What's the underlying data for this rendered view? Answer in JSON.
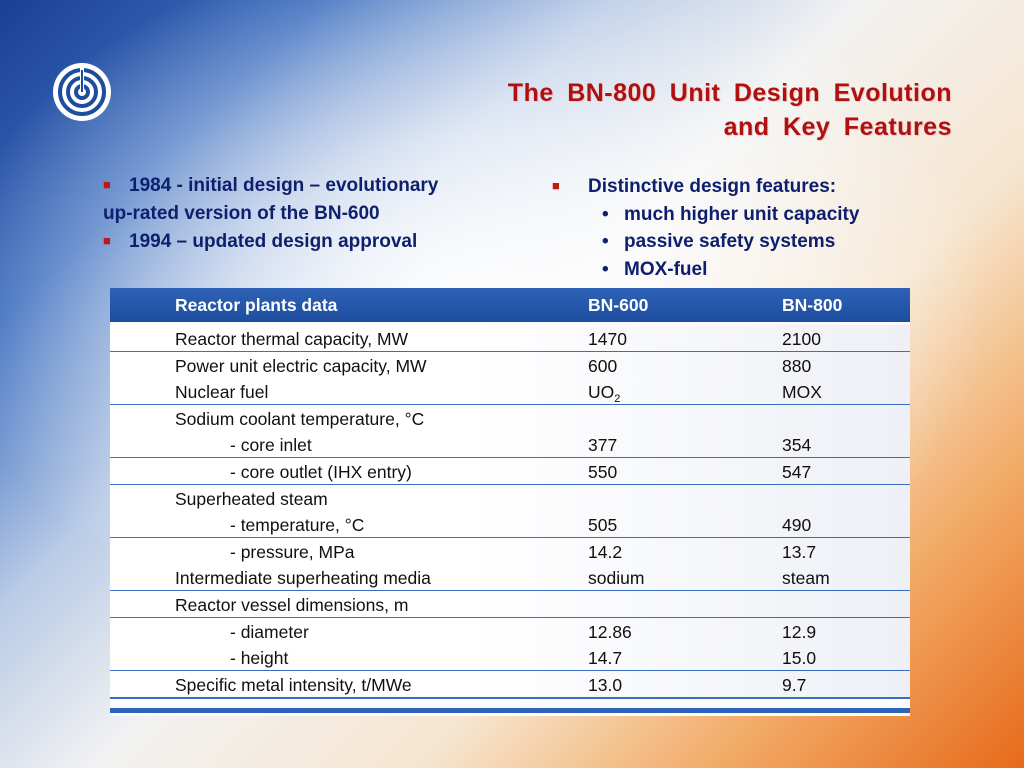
{
  "title": {
    "line1": "The  BN-800  Unit   Design  Evolution",
    "line2": "and  Key  Features"
  },
  "logo_icon": "concentric-circles-logo",
  "left_bullets": [
    {
      "text": "1984 - initial design – evolutionary",
      "continuation": "up-rated version  of the  BN-600"
    },
    {
      "text": "1994 – updated design approval"
    }
  ],
  "right_bullets": {
    "heading": "Distinctive design features:",
    "items": [
      "much higher unit capacity",
      "passive safety systems",
      "MOX-fuel"
    ]
  },
  "table": {
    "headers": [
      "Reactor plants data",
      "BN-600",
      "BN-800"
    ],
    "rows": [
      {
        "label": "Reactor thermal capacity, MW",
        "bn600": "1470",
        "bn800": "2100",
        "indent": false
      },
      {
        "label": "Power unit electric capacity, MW",
        "bn600": "600",
        "bn800": "880",
        "indent": false
      },
      {
        "label": "Nuclear fuel",
        "bn600": "UO",
        "bn600_sub": "2",
        "bn800": "MOX",
        "indent": false
      },
      {
        "label": "Sodium coolant temperature, °C",
        "bn600": "",
        "bn800": "",
        "indent": false
      },
      {
        "label": "- core inlet",
        "bn600": "377",
        "bn800": "354",
        "indent": true
      },
      {
        "label": "- core outlet (IHX entry)",
        "bn600": "550",
        "bn800": "547",
        "indent": true
      },
      {
        "label": "Superheated steam",
        "bn600": "",
        "bn800": "",
        "indent": false
      },
      {
        "label": "- temperature, °C",
        "bn600": "505",
        "bn800": "490",
        "indent": true
      },
      {
        "label": "- pressure, MPa",
        "bn600": "14.2",
        "bn800": "13.7",
        "indent": true
      },
      {
        "label": "Intermediate superheating media",
        "bn600": "sodium",
        "bn800": "steam",
        "indent": false
      },
      {
        "label": "Reactor vessel dimensions, m",
        "bn600": "",
        "bn800": "",
        "indent": false
      },
      {
        "label": "- diameter",
        "bn600": "12.86",
        "bn800": "12.9",
        "indent": true
      },
      {
        "label": "- height",
        "bn600": "14.7",
        "bn800": "15.0",
        "indent": true
      },
      {
        "label": "Specific metal intensity, t/MWe",
        "bn600": "13.0",
        "bn800": "9.7",
        "indent": false
      }
    ]
  },
  "colors": {
    "title": "#b01010",
    "bullet_text": "#0e1f6e",
    "bullet_marker": "#c01818",
    "table_header": "#1d4d9e"
  }
}
